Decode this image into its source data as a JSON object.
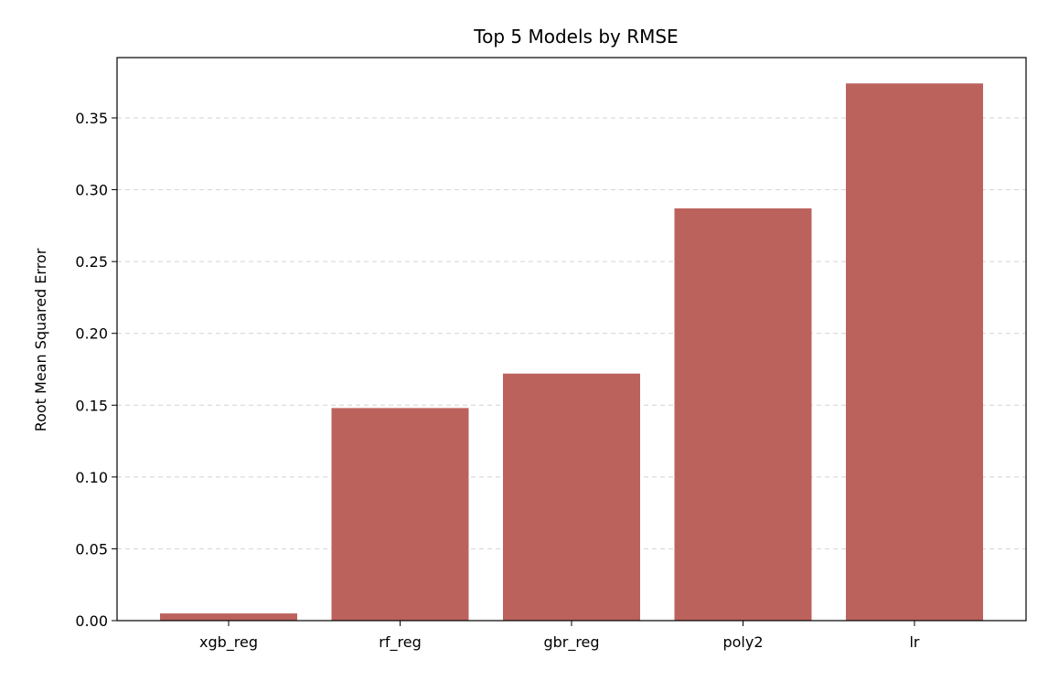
{
  "chart_data": {
    "type": "bar",
    "title": "Top 5 Models by RMSE",
    "xlabel": "",
    "ylabel": "Root Mean Squared Error",
    "categories": [
      "xgb_reg",
      "rf_reg",
      "gbr_reg",
      "poly2",
      "lr"
    ],
    "values": [
      0.005,
      0.148,
      0.172,
      0.287,
      0.374
    ],
    "ylim": [
      0,
      0.392
    ],
    "yticks": [
      "0.00",
      "0.05",
      "0.10",
      "0.15",
      "0.20",
      "0.25",
      "0.30",
      "0.35"
    ],
    "grid": "y-dashed",
    "bar_color": "#bc625d",
    "grid_color": "#d3d3d3"
  }
}
